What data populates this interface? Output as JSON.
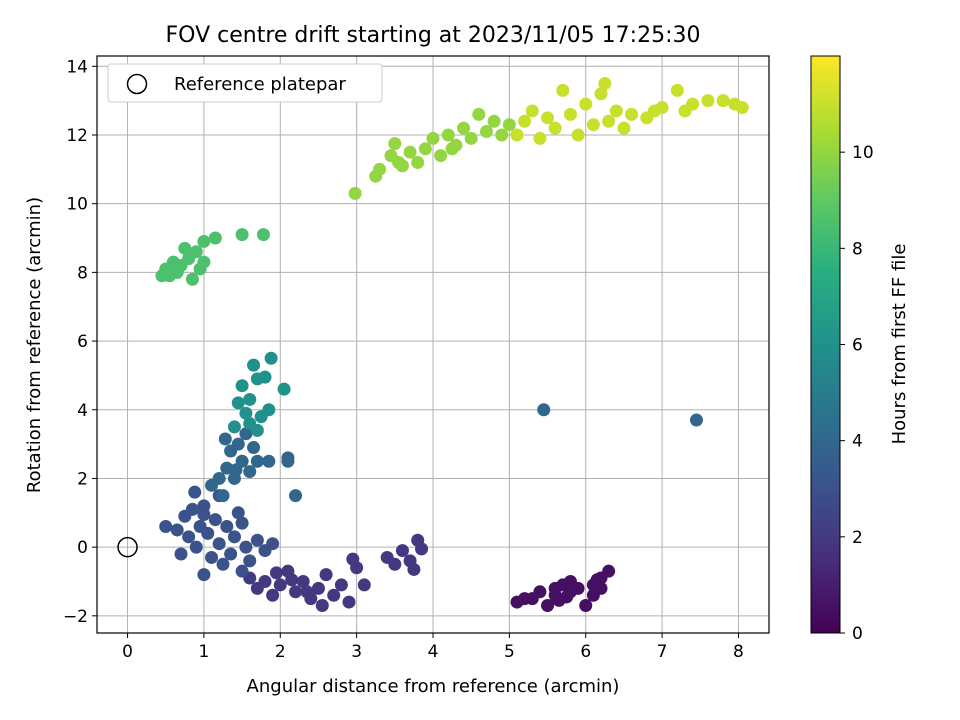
{
  "chart_data": {
    "type": "scatter",
    "title": "FOV centre drift starting at 2023/11/05 17:25:30",
    "xlabel": "Angular distance from reference (arcmin)",
    "ylabel": "Rotation from reference (arcmin)",
    "xlim": [
      -0.4,
      8.4
    ],
    "ylim": [
      -2.5,
      14.3
    ],
    "x_ticks": [
      0,
      1,
      2,
      3,
      4,
      5,
      6,
      7,
      8
    ],
    "y_ticks": [
      -2,
      0,
      2,
      4,
      6,
      8,
      10,
      12,
      14
    ],
    "grid": true,
    "legend": {
      "placement": "top-left",
      "entries": [
        "Reference platepar"
      ]
    },
    "reference_point": {
      "x": 0,
      "y": 0,
      "marker": "hollow-circle"
    },
    "colorbar": {
      "label": "Hours from first FF file",
      "colormap": "viridis",
      "range": [
        0,
        12
      ],
      "ticks": [
        0,
        2,
        4,
        6,
        8,
        10
      ]
    },
    "series": [
      {
        "label_hours": 0.5,
        "points": [
          [
            5.1,
            -1.6
          ],
          [
            5.2,
            -1.5
          ],
          [
            5.3,
            -1.5
          ],
          [
            5.4,
            -1.3
          ],
          [
            5.5,
            -1.7
          ],
          [
            5.6,
            -1.4
          ],
          [
            5.6,
            -1.2
          ],
          [
            5.7,
            -1.1
          ],
          [
            5.8,
            -1.3
          ],
          [
            5.8,
            -1.0
          ],
          [
            5.9,
            -1.2
          ],
          [
            6.0,
            -1.7
          ],
          [
            6.1,
            -1.4
          ],
          [
            6.1,
            -1.1
          ],
          [
            6.2,
            -1.2
          ],
          [
            6.2,
            -0.9
          ],
          [
            6.3,
            -0.7
          ],
          [
            6.15,
            -0.95
          ],
          [
            5.65,
            -1.55
          ],
          [
            5.75,
            -1.45
          ]
        ]
      },
      {
        "label_hours": 2.0,
        "points": [
          [
            1.6,
            -0.9
          ],
          [
            1.7,
            -1.2
          ],
          [
            1.8,
            -1.0
          ],
          [
            1.9,
            -1.4
          ],
          [
            2.0,
            -1.1
          ],
          [
            2.1,
            -0.7
          ],
          [
            2.2,
            -1.3
          ],
          [
            2.3,
            -1.0
          ],
          [
            2.4,
            -1.5
          ],
          [
            2.5,
            -1.2
          ],
          [
            2.6,
            -0.8
          ],
          [
            2.7,
            -1.4
          ],
          [
            2.8,
            -1.1
          ],
          [
            2.9,
            -1.6
          ],
          [
            3.0,
            -0.6
          ],
          [
            3.1,
            -1.1
          ],
          [
            2.95,
            -0.35
          ],
          [
            3.4,
            -0.3
          ],
          [
            3.5,
            -0.5
          ],
          [
            3.6,
            -0.1
          ],
          [
            3.7,
            -0.4
          ],
          [
            3.75,
            -0.65
          ],
          [
            3.8,
            0.2
          ],
          [
            3.85,
            -0.05
          ],
          [
            2.55,
            -1.7
          ],
          [
            2.35,
            -1.3
          ],
          [
            2.15,
            -0.95
          ],
          [
            1.95,
            -0.75
          ]
        ]
      },
      {
        "label_hours": 3.0,
        "points": [
          [
            0.5,
            0.6
          ],
          [
            0.65,
            0.5
          ],
          [
            0.7,
            -0.2
          ],
          [
            0.75,
            0.9
          ],
          [
            0.8,
            0.3
          ],
          [
            0.85,
            1.1
          ],
          [
            0.9,
            0.0
          ],
          [
            0.95,
            0.6
          ],
          [
            1.0,
            -0.8
          ],
          [
            1.0,
            1.2
          ],
          [
            1.05,
            0.4
          ],
          [
            1.1,
            -0.3
          ],
          [
            1.15,
            0.8
          ],
          [
            1.2,
            0.1
          ],
          [
            1.25,
            -0.5
          ],
          [
            1.3,
            0.6
          ],
          [
            1.35,
            -0.2
          ],
          [
            1.4,
            0.3
          ],
          [
            1.45,
            1.0
          ],
          [
            1.5,
            -0.7
          ],
          [
            1.55,
            0.0
          ],
          [
            1.6,
            -0.4
          ],
          [
            1.7,
            0.2
          ],
          [
            1.8,
            -0.1
          ],
          [
            1.9,
            0.1
          ],
          [
            0.88,
            1.6
          ],
          [
            1.0,
            0.95
          ],
          [
            1.2,
            1.5
          ],
          [
            1.5,
            0.7
          ]
        ]
      },
      {
        "label_hours": 4.0,
        "points": [
          [
            1.1,
            1.8
          ],
          [
            1.2,
            2.0
          ],
          [
            1.25,
            1.5
          ],
          [
            1.3,
            2.3
          ],
          [
            1.35,
            2.8
          ],
          [
            1.4,
            2.0
          ],
          [
            1.45,
            3.0
          ],
          [
            1.5,
            2.5
          ],
          [
            1.55,
            3.3
          ],
          [
            1.6,
            2.2
          ],
          [
            1.65,
            2.9
          ],
          [
            1.7,
            2.5
          ],
          [
            1.85,
            2.5
          ],
          [
            2.1,
            2.6
          ],
          [
            2.1,
            2.5
          ],
          [
            2.2,
            1.5
          ],
          [
            5.45,
            4.0
          ],
          [
            7.45,
            3.7
          ],
          [
            1.28,
            3.15
          ],
          [
            1.42,
            2.25
          ]
        ]
      },
      {
        "label_hours": 6.0,
        "points": [
          [
            1.4,
            3.5
          ],
          [
            1.45,
            4.2
          ],
          [
            1.5,
            4.7
          ],
          [
            1.55,
            3.9
          ],
          [
            1.6,
            4.3
          ],
          [
            1.65,
            5.3
          ],
          [
            1.7,
            4.9
          ],
          [
            1.75,
            3.8
          ],
          [
            1.8,
            4.95
          ],
          [
            1.85,
            4.0
          ],
          [
            1.88,
            5.5
          ],
          [
            2.05,
            4.6
          ],
          [
            1.6,
            3.6
          ],
          [
            1.7,
            3.4
          ]
        ]
      },
      {
        "label_hours": 8.5,
        "points": [
          [
            0.45,
            7.9
          ],
          [
            0.5,
            8.1
          ],
          [
            0.55,
            7.9
          ],
          [
            0.6,
            8.3
          ],
          [
            0.65,
            8.0
          ],
          [
            0.7,
            8.2
          ],
          [
            0.75,
            8.7
          ],
          [
            0.8,
            8.4
          ],
          [
            0.85,
            7.8
          ],
          [
            0.9,
            8.6
          ],
          [
            0.95,
            8.1
          ],
          [
            1.0,
            8.3
          ],
          [
            1.0,
            8.9
          ],
          [
            1.15,
            9.0
          ],
          [
            1.5,
            9.1
          ],
          [
            1.78,
            9.1
          ]
        ]
      },
      {
        "label_hours": 10.0,
        "points": [
          [
            2.98,
            10.3
          ],
          [
            3.25,
            10.8
          ],
          [
            3.3,
            11.0
          ],
          [
            3.45,
            11.4
          ],
          [
            3.5,
            11.75
          ],
          [
            3.6,
            11.1
          ],
          [
            3.7,
            11.5
          ],
          [
            3.8,
            11.2
          ],
          [
            3.9,
            11.6
          ],
          [
            4.0,
            11.9
          ],
          [
            4.1,
            11.4
          ],
          [
            4.2,
            12.0
          ],
          [
            4.3,
            11.7
          ],
          [
            4.4,
            12.2
          ],
          [
            4.5,
            11.9
          ],
          [
            4.6,
            12.6
          ],
          [
            4.7,
            12.1
          ],
          [
            4.8,
            12.4
          ],
          [
            4.9,
            12.0
          ],
          [
            5.0,
            12.3
          ],
          [
            3.55,
            11.2
          ],
          [
            4.25,
            11.6
          ]
        ]
      },
      {
        "label_hours": 11.0,
        "points": [
          [
            5.1,
            12.0
          ],
          [
            5.2,
            12.4
          ],
          [
            5.3,
            12.7
          ],
          [
            5.4,
            11.9
          ],
          [
            5.5,
            12.5
          ],
          [
            5.6,
            12.2
          ],
          [
            5.7,
            13.3
          ],
          [
            5.8,
            12.6
          ],
          [
            5.9,
            12.0
          ],
          [
            6.0,
            12.9
          ],
          [
            6.1,
            12.3
          ],
          [
            6.2,
            13.2
          ],
          [
            6.25,
            13.5
          ],
          [
            6.3,
            12.4
          ],
          [
            6.4,
            12.7
          ],
          [
            6.5,
            12.2
          ],
          [
            6.6,
            12.6
          ],
          [
            6.8,
            12.5
          ],
          [
            7.0,
            12.8
          ],
          [
            7.2,
            13.3
          ],
          [
            7.4,
            12.9
          ],
          [
            7.6,
            13.0
          ],
          [
            7.8,
            13.0
          ],
          [
            7.95,
            12.9
          ],
          [
            8.05,
            12.8
          ],
          [
            6.9,
            12.7
          ],
          [
            7.3,
            12.7
          ]
        ]
      }
    ]
  }
}
